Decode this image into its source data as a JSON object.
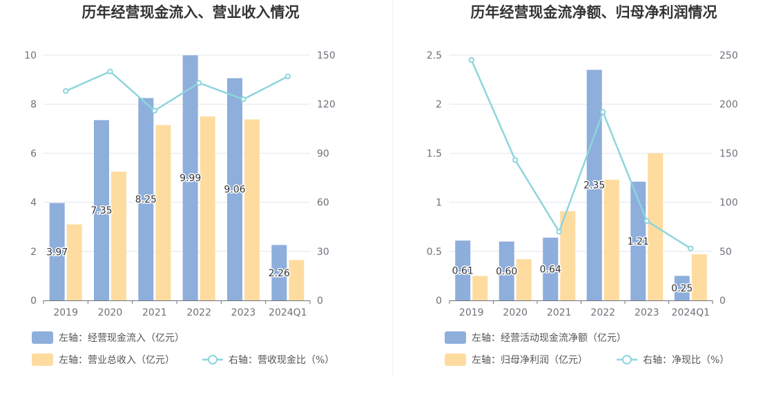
{
  "colors": {
    "bar_primary": "#8eaedc",
    "bar_secondary": "#fedca0",
    "line": "#8dd5dd",
    "grid": "#e3e6ef",
    "axis": "#6e7079",
    "divider": "#eeeeee"
  },
  "chart_data": [
    {
      "type": "bar",
      "title": "历年经营现金流入、营业收入情况",
      "categories": [
        "2019",
        "2020",
        "2021",
        "2022",
        "2023",
        "2024Q1"
      ],
      "left_axis": {
        "min": 0,
        "max": 10,
        "ticks": [
          "0",
          "2",
          "4",
          "6",
          "8",
          "10"
        ]
      },
      "right_axis": {
        "min": 0,
        "max": 150,
        "ticks": [
          "0",
          "30",
          "60",
          "90",
          "120",
          "150"
        ]
      },
      "grid": true,
      "legend_position": "bottom",
      "series": [
        {
          "name": "左轴：经营现金流入（亿元）",
          "kind": "bar",
          "axis": "left",
          "color": "#8eaedc",
          "values": [
            3.97,
            7.35,
            8.25,
            9.99,
            9.06,
            2.26
          ],
          "labels": [
            "3.97",
            "7.35",
            "8.25",
            "9.99",
            "9.06",
            "2.26"
          ]
        },
        {
          "name": "左轴：营业总收入（亿元）",
          "kind": "bar",
          "axis": "left",
          "color": "#fedca0",
          "values": [
            3.1,
            5.25,
            7.15,
            7.5,
            7.38,
            1.65
          ]
        },
        {
          "name": "右轴：营收现金比（%）",
          "kind": "line",
          "axis": "right",
          "color": "#8dd5dd",
          "values": [
            128,
            140,
            116,
            133,
            123,
            137
          ]
        }
      ]
    },
    {
      "type": "bar",
      "title": "历年经营现金流净额、归母净利润情况",
      "categories": [
        "2019",
        "2020",
        "2021",
        "2022",
        "2023",
        "2024Q1"
      ],
      "left_axis": {
        "min": 0,
        "max": 2.5,
        "ticks": [
          "0",
          "0.5",
          "1",
          "1.5",
          "2",
          "2.5"
        ]
      },
      "right_axis": {
        "min": 0,
        "max": 250,
        "ticks": [
          "0",
          "50",
          "100",
          "150",
          "200",
          "250"
        ]
      },
      "grid": true,
      "legend_position": "bottom",
      "series": [
        {
          "name": "左轴：经营活动现金流净额（亿元）",
          "kind": "bar",
          "axis": "left",
          "color": "#8eaedc",
          "values": [
            0.61,
            0.6,
            0.64,
            2.35,
            1.21,
            0.25
          ],
          "labels": [
            "0.61",
            "0.60",
            "0.64",
            "2.35",
            "1.21",
            "0.25"
          ]
        },
        {
          "name": "左轴：归母净利润（亿元）",
          "kind": "bar",
          "axis": "left",
          "color": "#fedca0",
          "values": [
            0.25,
            0.42,
            0.91,
            1.23,
            1.5,
            0.47
          ]
        },
        {
          "name": "右轴：净现比（%）",
          "kind": "line",
          "axis": "right",
          "color": "#8dd5dd",
          "values": [
            245,
            143,
            70,
            192,
            81,
            53
          ]
        }
      ]
    }
  ]
}
